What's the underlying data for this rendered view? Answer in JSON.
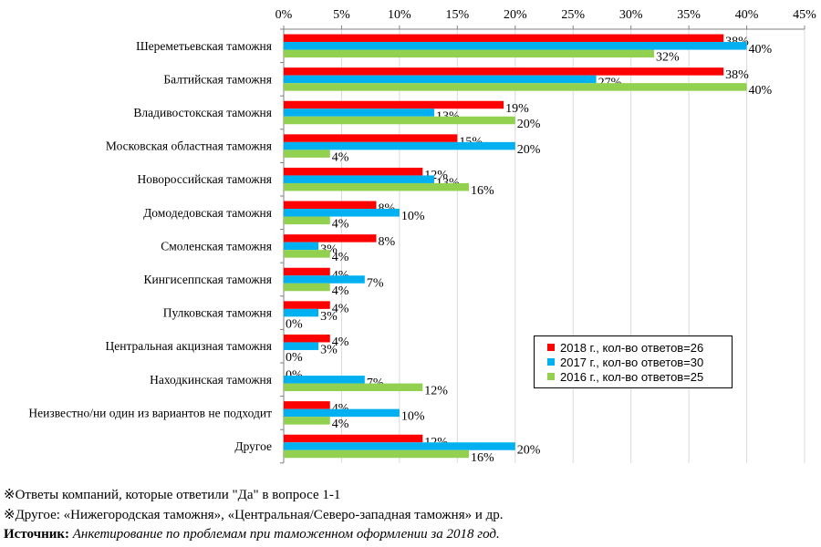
{
  "chart_data": {
    "type": "bar",
    "orientation": "horizontal",
    "title": "",
    "x_axis_position": "top",
    "xlim": [
      0,
      45
    ],
    "x_ticks": [
      "0%",
      "5%",
      "10%",
      "15%",
      "20%",
      "25%",
      "30%",
      "35%",
      "40%",
      "45%"
    ],
    "grid": true,
    "categories": [
      "Шереметьевская таможня",
      "Балтийская таможня",
      "Владивостокская таможня",
      "Московская областная таможня",
      "Новороссийская таможня",
      "Домодедовская таможня",
      "Смоленская таможня",
      "Кингисеппская таможня",
      "Пулковская таможня",
      "Центральная акцизная таможня",
      "Находкинская таможня",
      "Неизвестно/ни один из вариантов не подходит",
      "Другое"
    ],
    "series": [
      {
        "name": "2018 г., кол-во ответов=26",
        "color": "#ff0000",
        "values": [
          38,
          38,
          19,
          15,
          12,
          8,
          8,
          4,
          4,
          4,
          0,
          4,
          12
        ],
        "labels": [
          "38%",
          "38%",
          "19%",
          "15%",
          "12%",
          "8%",
          "8%",
          "4%",
          "4%",
          "4%",
          "0%",
          "4%",
          "12%"
        ]
      },
      {
        "name": "2017 г., кол-во ответов=30",
        "color": "#00b0f0",
        "values": [
          40,
          27,
          13,
          20,
          13,
          10,
          3,
          7,
          3,
          3,
          7,
          10,
          20
        ],
        "labels": [
          "40%",
          "27%",
          "13%",
          "20%",
          "13%",
          "10%",
          "3%",
          "7%",
          "3%",
          "3%",
          "7%",
          "10%",
          "20%"
        ]
      },
      {
        "name": "2016 г., кол-во ответов=25",
        "color": "#92d050",
        "values": [
          32,
          40,
          20,
          4,
          16,
          4,
          4,
          4,
          0,
          0,
          12,
          4,
          16
        ],
        "labels": [
          "32%",
          "40%",
          "20%",
          "4%",
          "16%",
          "4%",
          "4%",
          "4%",
          "0%",
          "0%",
          "12%",
          "4%",
          "16%"
        ]
      }
    ],
    "legend_position": "bottom-right"
  },
  "notes": {
    "line1": "※Ответы компаний, которые ответили \"Да\" в вопросе 1-1",
    "line2": "※Другое: «Нижегородская таможня», «Центральная/Северо-западная таможня» и др.",
    "source_label": "Источник:",
    "source_text": "Анкетирование по проблемам при таможенном оформлении за 2018 год."
  }
}
